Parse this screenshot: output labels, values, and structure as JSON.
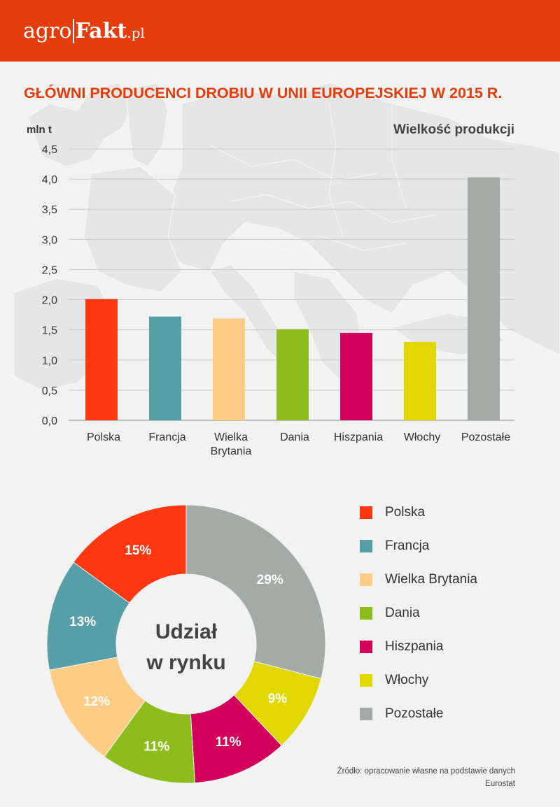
{
  "header": {
    "logo_part1": "agro",
    "logo_part2": "Fakt",
    "logo_part3": ".pl"
  },
  "title": "GŁÓWNI PRODUCENCI DROBIU W UNII EUROPEJSKIEJ W 2015 R.",
  "source": "Źródło: opracowanie własne na podstawie danych Eurostat",
  "colors": {
    "header": "#e43d0b",
    "Polska": "#ff3811",
    "Francja": "#579fa6",
    "Wielka Brytania": "#fdcd86",
    "Dania": "#8dbd1d",
    "Hiszpania": "#d2005a",
    "Włochy": "#e0d800",
    "Pozostałe": "#a3aba6"
  },
  "chart_data": [
    {
      "type": "bar",
      "title": "Wielkość produkcji",
      "ylabel": "mln t",
      "ylim": [
        0,
        4.5
      ],
      "yticks": [
        "0,0",
        "0,5",
        "1,0",
        "1,5",
        "2,0",
        "2,5",
        "3,0",
        "3,5",
        "4,0",
        "4,5"
      ],
      "categories": [
        "Polska",
        "Francja",
        "Wielka Brytania",
        "Dania",
        "Hiszpania",
        "Włochy",
        "Pozostałe"
      ],
      "category_lines": [
        [
          "Polska"
        ],
        [
          "Francja"
        ],
        [
          "Wielka",
          "Brytania"
        ],
        [
          "Dania"
        ],
        [
          "Hiszpania"
        ],
        [
          "Włochy"
        ],
        [
          "Pozostałe"
        ]
      ],
      "values": [
        2.01,
        1.72,
        1.69,
        1.51,
        1.45,
        1.3,
        4.03
      ],
      "grid": true
    },
    {
      "type": "pie",
      "title": "Udział w rynku",
      "title_lines": [
        "Udział",
        "w rynku"
      ],
      "categories": [
        "Polska",
        "Francja",
        "Wielka Brytania",
        "Dania",
        "Hiszpania",
        "Włochy",
        "Pozostałe"
      ],
      "values": [
        15,
        13,
        12,
        11,
        11,
        9,
        29
      ],
      "labels": [
        "15%",
        "13%",
        "12%",
        "11%",
        "11%",
        "9%",
        "29%"
      ],
      "legend_position": "right"
    }
  ]
}
